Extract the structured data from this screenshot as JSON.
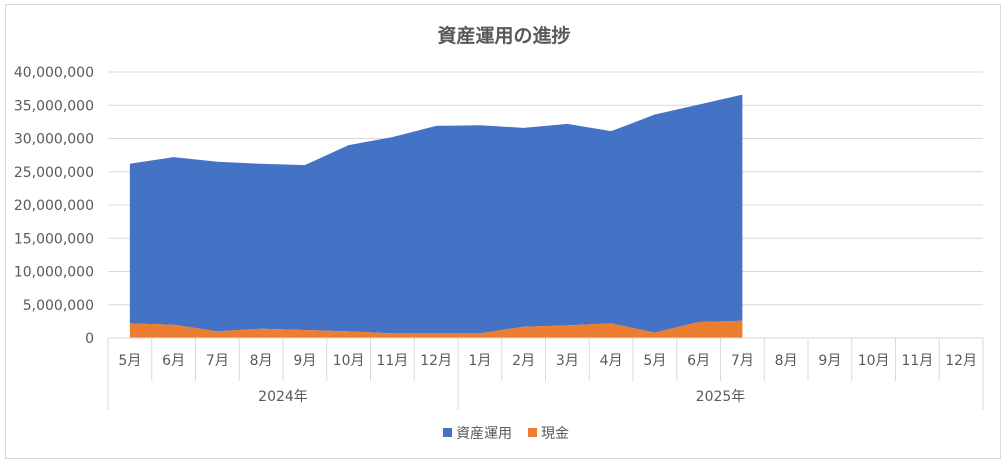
{
  "chart_data": {
    "type": "area",
    "stacked": true,
    "title": "資産運用の進捗",
    "xlabel": "",
    "ylabel": "",
    "ylim": [
      0,
      40000000
    ],
    "y_ticks": [
      "0",
      "5,000,000",
      "10,000,000",
      "15,000,000",
      "20,000,000",
      "25,000,000",
      "30,000,000",
      "35,000,000",
      "40,000,000"
    ],
    "y_tick_values": [
      0,
      5000000,
      10000000,
      15000000,
      20000000,
      25000000,
      30000000,
      35000000,
      40000000
    ],
    "categories": [
      "5月",
      "6月",
      "7月",
      "8月",
      "9月",
      "10月",
      "11月",
      "12月",
      "1月",
      "2月",
      "3月",
      "4月",
      "5月",
      "6月",
      "7月",
      "8月",
      "9月",
      "10月",
      "11月",
      "12月"
    ],
    "groups": [
      {
        "label": "2024年",
        "count": 8
      },
      {
        "label": "2025年",
        "count": 12
      }
    ],
    "series": [
      {
        "name": "現金",
        "color": "#ED7D31",
        "values": [
          2200000,
          2000000,
          1000000,
          1400000,
          1200000,
          1000000,
          700000,
          700000,
          700000,
          1700000,
          1900000,
          2200000,
          800000,
          2400000,
          2600000,
          null,
          null,
          null,
          null,
          null
        ]
      },
      {
        "name": "資産運用",
        "color": "#4472C4",
        "values": [
          24000000,
          25200000,
          25500000,
          24800000,
          24800000,
          28000000,
          29500000,
          31200000,
          31300000,
          29900000,
          30300000,
          28900000,
          32800000,
          32700000,
          34000000,
          null,
          null,
          null,
          null,
          null
        ]
      }
    ],
    "legend": {
      "position": "bottom",
      "order": [
        "資産運用",
        "現金"
      ]
    },
    "grid": true,
    "colors": {
      "gridline": "#d9d9d9",
      "axis_text": "#595959",
      "title": "#595959"
    }
  }
}
